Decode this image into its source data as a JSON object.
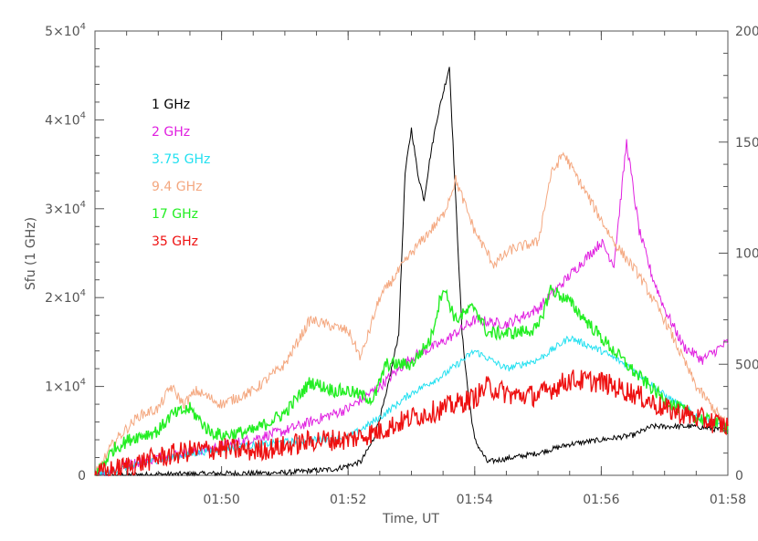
{
  "chart_data": {
    "type": "line",
    "title": "",
    "xlabel": "Time, UT",
    "ylabel": "Sfu (1 GHz)",
    "x_unit": "minutes",
    "xlim": [
      "01:48:00",
      "01:58:00"
    ],
    "x_ticks": [
      "01:50",
      "01:52",
      "01:54",
      "01:56",
      "01:58"
    ],
    "ylim": [
      0,
      50000
    ],
    "y_ticks": [
      {
        "value": 0,
        "label": "0"
      },
      {
        "value": 10000,
        "label": "1×10",
        "exp": "4"
      },
      {
        "value": 20000,
        "label": "2×10",
        "exp": "4"
      },
      {
        "value": 30000,
        "label": "3×10",
        "exp": "4"
      },
      {
        "value": 40000,
        "label": "4×10",
        "exp": "4"
      },
      {
        "value": 50000,
        "label": "5×10",
        "exp": "4"
      }
    ],
    "y2lim": [
      0,
      2000
    ],
    "y2_ticks": [
      {
        "value": 0,
        "label": "0"
      },
      {
        "value": 500,
        "label": "500"
      },
      {
        "value": 1000,
        "label": "1000"
      },
      {
        "value": 1500,
        "label": "1500"
      },
      {
        "value": 2000,
        "label": "2000"
      }
    ],
    "grid": false,
    "legend_position": "top-left",
    "series": [
      {
        "name": "1 GHz",
        "color": "#000000",
        "axis": "left",
        "noise": 0.006,
        "x": [
          "01:48:00",
          "01:49:00",
          "01:50:00",
          "01:51:00",
          "01:51:48",
          "01:52:12",
          "01:52:24",
          "01:52:36",
          "01:52:48",
          "01:52:54",
          "01:53:00",
          "01:53:06",
          "01:53:12",
          "01:53:18",
          "01:53:24",
          "01:53:30",
          "01:53:36",
          "01:53:42",
          "01:53:48",
          "01:53:54",
          "01:54:00",
          "01:54:12",
          "01:54:36",
          "01:55:00",
          "01:55:30",
          "01:56:00",
          "01:56:30",
          "01:56:48",
          "01:57:30",
          "01:58:00"
        ],
        "y": [
          0,
          100,
          200,
          300,
          700,
          1500,
          4000,
          9000,
          16000,
          34000,
          39000,
          34000,
          31000,
          36000,
          40000,
          43000,
          46000,
          31000,
          16000,
          9000,
          4000,
          1500,
          2000,
          2500,
          3500,
          4000,
          4500,
          5500,
          5500,
          5000
        ]
      },
      {
        "name": "2 GHz",
        "color": "#e020e0",
        "axis": "right",
        "noise": 0.012,
        "x": [
          "01:48:00",
          "01:48:24",
          "01:49:00",
          "01:50:00",
          "01:51:00",
          "01:51:30",
          "01:52:00",
          "01:52:30",
          "01:53:00",
          "01:53:30",
          "01:54:00",
          "01:54:30",
          "01:55:00",
          "01:55:30",
          "01:56:00",
          "01:56:12",
          "01:56:24",
          "01:56:36",
          "01:56:48",
          "01:57:00",
          "01:57:18",
          "01:57:36",
          "01:58:00"
        ],
        "y": [
          0,
          40,
          80,
          130,
          200,
          250,
          300,
          400,
          530,
          600,
          700,
          680,
          750,
          900,
          1050,
          950,
          1500,
          1100,
          900,
          750,
          580,
          520,
          600
        ]
      },
      {
        "name": "3.75 GHz",
        "color": "#22e0f0",
        "axis": "right",
        "noise": 0.008,
        "x": [
          "01:48:00",
          "01:49:00",
          "01:50:00",
          "01:51:00",
          "01:52:00",
          "01:52:30",
          "01:53:00",
          "01:53:30",
          "01:54:00",
          "01:54:30",
          "01:55:00",
          "01:55:30",
          "01:56:00",
          "01:56:30",
          "01:57:00",
          "01:57:30",
          "01:58:00"
        ],
        "y": [
          0,
          70,
          120,
          150,
          170,
          260,
          370,
          450,
          560,
          480,
          520,
          620,
          560,
          480,
          360,
          270,
          220
        ]
      },
      {
        "name": "9.4 GHz",
        "color": "#f4a880",
        "axis": "right",
        "noise": 0.012,
        "x": [
          "01:48:00",
          "01:48:18",
          "01:48:42",
          "01:49:00",
          "01:49:12",
          "01:49:24",
          "01:49:36",
          "01:50:00",
          "01:50:30",
          "01:51:00",
          "01:51:24",
          "01:52:00",
          "01:52:12",
          "01:52:30",
          "01:53:00",
          "01:53:30",
          "01:53:42",
          "01:54:00",
          "01:54:18",
          "01:54:36",
          "01:55:00",
          "01:55:12",
          "01:55:24",
          "01:55:48",
          "01:56:00",
          "01:56:12",
          "01:56:36",
          "01:57:00",
          "01:57:30",
          "01:58:00"
        ],
        "y": [
          0,
          150,
          270,
          300,
          400,
          320,
          380,
          320,
          380,
          500,
          700,
          650,
          530,
          800,
          1000,
          1170,
          1330,
          1100,
          950,
          1020,
          1050,
          1350,
          1450,
          1250,
          1150,
          1050,
          900,
          700,
          400,
          220
        ]
      },
      {
        "name": "17 GHz",
        "color": "#22ee22",
        "axis": "right",
        "noise": 0.015,
        "x": [
          "01:48:00",
          "01:48:18",
          "01:48:36",
          "01:49:00",
          "01:49:12",
          "01:49:30",
          "01:49:48",
          "01:50:00",
          "01:50:30",
          "01:51:00",
          "01:51:24",
          "01:51:48",
          "01:52:00",
          "01:52:24",
          "01:52:36",
          "01:53:00",
          "01:53:18",
          "01:53:30",
          "01:53:42",
          "01:54:00",
          "01:54:12",
          "01:54:36",
          "01:55:00",
          "01:55:12",
          "01:55:30",
          "01:56:00",
          "01:56:30",
          "01:57:00",
          "01:57:30",
          "01:58:00"
        ],
        "y": [
          0,
          120,
          170,
          200,
          270,
          300,
          200,
          180,
          200,
          280,
          420,
          380,
          380,
          340,
          500,
          500,
          610,
          850,
          700,
          760,
          640,
          640,
          660,
          840,
          780,
          620,
          470,
          340,
          260,
          220
        ]
      },
      {
        "name": "35 GHz",
        "color": "#ee1111",
        "axis": "right",
        "noise": 0.025,
        "x": [
          "01:48:00",
          "01:48:30",
          "01:49:00",
          "01:49:30",
          "01:50:00",
          "01:50:30",
          "01:51:00",
          "01:51:30",
          "01:52:00",
          "01:52:30",
          "01:53:00",
          "01:53:30",
          "01:54:00",
          "01:54:12",
          "01:54:36",
          "01:55:00",
          "01:55:30",
          "01:56:00",
          "01:56:30",
          "01:57:00",
          "01:57:30",
          "01:58:00"
        ],
        "y": [
          0,
          40,
          80,
          110,
          120,
          110,
          130,
          160,
          160,
          200,
          260,
          300,
          350,
          400,
          360,
          360,
          430,
          420,
          370,
          300,
          260,
          220
        ]
      }
    ]
  }
}
